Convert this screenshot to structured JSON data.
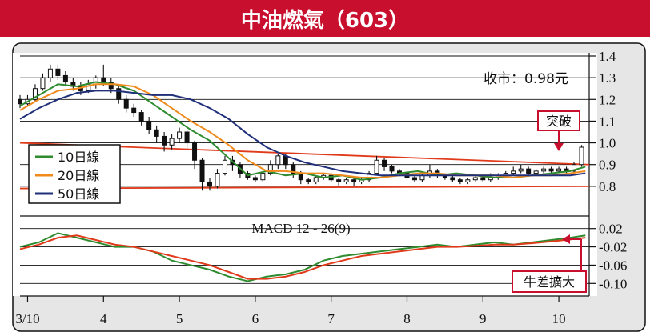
{
  "title": "中油燃氣（603）",
  "colors": {
    "title_bg": "#c8102e",
    "frame_bg": "#e6e6e6",
    "ma10": "#2e8b2e",
    "ma20": "#f08a1c",
    "ma50": "#1f2f7a",
    "macd_line": "#2e8b2e",
    "signal_line": "#e03a1a",
    "trendline": "#e03a1a",
    "annotation": "#c8102e",
    "candle": "#111111"
  },
  "price_note": "收市：0.98元",
  "breakout_label": "突破",
  "bull_diff_label": "牛差擴大",
  "legend": [
    {
      "label": "10日線",
      "color": "#2e8b2e"
    },
    {
      "label": "20日線",
      "color": "#f08a1c"
    },
    {
      "label": "50日線",
      "color": "#1f2f7a"
    }
  ],
  "macd_label": "MACD 12 - 26(9)",
  "x_labels": [
    "3/10",
    "4",
    "5",
    "6",
    "7",
    "8",
    "9",
    "10"
  ],
  "chart_data": [
    {
      "type": "line",
      "panel": "price",
      "title": "中油燃氣（603）",
      "x_domain": [
        0,
        150
      ],
      "ylim": [
        0.7,
        1.4
      ],
      "yticks": [
        "1.4",
        "1.3",
        "1.2",
        "1.1",
        "1.0",
        "0.9",
        "0.8"
      ],
      "close_price": 0.98,
      "series": [
        {
          "name": "10日線",
          "x": [
            0,
            5,
            10,
            15,
            20,
            25,
            30,
            35,
            40,
            45,
            50,
            55,
            60,
            65,
            70,
            75,
            80,
            85,
            90,
            95,
            100,
            105,
            110,
            115,
            120,
            125,
            130,
            135,
            140,
            145,
            149
          ],
          "values": [
            1.17,
            1.22,
            1.27,
            1.26,
            1.28,
            1.27,
            1.24,
            1.18,
            1.12,
            1.06,
            1.01,
            0.93,
            0.85,
            0.87,
            0.85,
            0.86,
            0.84,
            0.85,
            0.83,
            0.84,
            0.86,
            0.87,
            0.85,
            0.86,
            0.85,
            0.84,
            0.84,
            0.85,
            0.86,
            0.87,
            0.89
          ]
        },
        {
          "name": "20日線",
          "x": [
            0,
            5,
            10,
            15,
            20,
            25,
            30,
            35,
            40,
            45,
            50,
            55,
            60,
            65,
            70,
            75,
            80,
            85,
            90,
            95,
            100,
            105,
            110,
            115,
            120,
            125,
            130,
            135,
            140,
            145,
            149
          ],
          "values": [
            1.15,
            1.2,
            1.24,
            1.25,
            1.27,
            1.27,
            1.26,
            1.22,
            1.16,
            1.1,
            1.05,
            0.99,
            0.92,
            0.87,
            0.87,
            0.86,
            0.86,
            0.85,
            0.84,
            0.84,
            0.85,
            0.86,
            0.86,
            0.85,
            0.85,
            0.85,
            0.84,
            0.85,
            0.85,
            0.86,
            0.87
          ]
        },
        {
          "name": "50日線",
          "x": [
            0,
            5,
            10,
            15,
            20,
            25,
            30,
            35,
            40,
            45,
            50,
            55,
            60,
            65,
            70,
            75,
            80,
            85,
            90,
            95,
            100,
            105,
            110,
            115,
            120,
            125,
            130,
            135,
            140,
            145,
            149
          ],
          "values": [
            1.11,
            1.16,
            1.2,
            1.23,
            1.24,
            1.24,
            1.23,
            1.22,
            1.22,
            1.2,
            1.16,
            1.11,
            1.04,
            0.98,
            0.94,
            0.91,
            0.89,
            0.87,
            0.86,
            0.85,
            0.85,
            0.85,
            0.85,
            0.85,
            0.85,
            0.85,
            0.85,
            0.85,
            0.85,
            0.85,
            0.86
          ]
        }
      ],
      "candles": [
        [
          0,
          1.2,
          1.18,
          1.22,
          1.16
        ],
        [
          2,
          1.18,
          1.2,
          1.22,
          1.17
        ],
        [
          4,
          1.2,
          1.25,
          1.27,
          1.19
        ],
        [
          6,
          1.25,
          1.3,
          1.32,
          1.24
        ],
        [
          8,
          1.3,
          1.34,
          1.36,
          1.28
        ],
        [
          10,
          1.34,
          1.31,
          1.36,
          1.29
        ],
        [
          12,
          1.31,
          1.28,
          1.33,
          1.26
        ],
        [
          14,
          1.28,
          1.26,
          1.3,
          1.24
        ],
        [
          16,
          1.26,
          1.24,
          1.28,
          1.22
        ],
        [
          18,
          1.24,
          1.27,
          1.29,
          1.23
        ],
        [
          20,
          1.27,
          1.3,
          1.31,
          1.25
        ],
        [
          22,
          1.3,
          1.28,
          1.36,
          1.26
        ],
        [
          24,
          1.28,
          1.25,
          1.3,
          1.23
        ],
        [
          26,
          1.25,
          1.2,
          1.26,
          1.18
        ],
        [
          28,
          1.2,
          1.16,
          1.22,
          1.14
        ],
        [
          30,
          1.16,
          1.14,
          1.18,
          1.12
        ],
        [
          32,
          1.14,
          1.1,
          1.15,
          1.08
        ],
        [
          34,
          1.1,
          1.06,
          1.12,
          1.04
        ],
        [
          36,
          1.06,
          1.03,
          1.08,
          1.0
        ],
        [
          38,
          1.03,
          0.99,
          1.05,
          0.96
        ],
        [
          40,
          0.99,
          1.02,
          1.04,
          0.97
        ],
        [
          42,
          1.02,
          1.05,
          1.07,
          1.0
        ],
        [
          44,
          1.05,
          1.0,
          1.06,
          0.97
        ],
        [
          46,
          1.0,
          0.92,
          1.01,
          0.88
        ],
        [
          48,
          0.92,
          0.82,
          0.93,
          0.78
        ],
        [
          50,
          0.82,
          0.8,
          0.84,
          0.78
        ],
        [
          52,
          0.8,
          0.86,
          0.88,
          0.79
        ],
        [
          54,
          0.86,
          0.92,
          0.94,
          0.85
        ],
        [
          56,
          0.92,
          0.9,
          0.94,
          0.87
        ],
        [
          58,
          0.9,
          0.86,
          0.91,
          0.84
        ],
        [
          60,
          0.86,
          0.84,
          0.87,
          0.83
        ],
        [
          62,
          0.84,
          0.83,
          0.85,
          0.82
        ],
        [
          64,
          0.83,
          0.86,
          0.87,
          0.82
        ],
        [
          66,
          0.86,
          0.9,
          0.92,
          0.85
        ],
        [
          68,
          0.9,
          0.94,
          0.95,
          0.88
        ],
        [
          70,
          0.94,
          0.9,
          0.95,
          0.88
        ],
        [
          72,
          0.9,
          0.86,
          0.91,
          0.84
        ],
        [
          74,
          0.86,
          0.83,
          0.87,
          0.81
        ],
        [
          76,
          0.83,
          0.82,
          0.84,
          0.81
        ],
        [
          78,
          0.82,
          0.84,
          0.85,
          0.81
        ],
        [
          80,
          0.84,
          0.85,
          0.86,
          0.83
        ],
        [
          82,
          0.85,
          0.83,
          0.86,
          0.82
        ],
        [
          84,
          0.83,
          0.82,
          0.84,
          0.8
        ],
        [
          86,
          0.82,
          0.83,
          0.84,
          0.81
        ],
        [
          88,
          0.83,
          0.82,
          0.84,
          0.8
        ],
        [
          90,
          0.82,
          0.83,
          0.84,
          0.81
        ],
        [
          92,
          0.83,
          0.86,
          0.87,
          0.82
        ],
        [
          94,
          0.86,
          0.92,
          0.94,
          0.85
        ],
        [
          96,
          0.92,
          0.89,
          0.93,
          0.87
        ],
        [
          98,
          0.89,
          0.87,
          0.9,
          0.86
        ],
        [
          100,
          0.87,
          0.86,
          0.88,
          0.85
        ],
        [
          102,
          0.86,
          0.84,
          0.87,
          0.83
        ],
        [
          104,
          0.84,
          0.83,
          0.85,
          0.82
        ],
        [
          106,
          0.83,
          0.85,
          0.86,
          0.82
        ],
        [
          108,
          0.85,
          0.87,
          0.9,
          0.84
        ],
        [
          110,
          0.87,
          0.85,
          0.88,
          0.84
        ],
        [
          112,
          0.85,
          0.84,
          0.86,
          0.83
        ],
        [
          114,
          0.84,
          0.83,
          0.85,
          0.82
        ],
        [
          116,
          0.83,
          0.82,
          0.84,
          0.81
        ],
        [
          118,
          0.82,
          0.83,
          0.84,
          0.81
        ],
        [
          120,
          0.83,
          0.84,
          0.85,
          0.82
        ],
        [
          122,
          0.84,
          0.83,
          0.85,
          0.82
        ],
        [
          124,
          0.83,
          0.84,
          0.86,
          0.82
        ],
        [
          126,
          0.84,
          0.85,
          0.86,
          0.83
        ],
        [
          128,
          0.85,
          0.86,
          0.87,
          0.84
        ],
        [
          130,
          0.86,
          0.87,
          0.89,
          0.85
        ],
        [
          132,
          0.87,
          0.88,
          0.9,
          0.86
        ],
        [
          134,
          0.88,
          0.86,
          0.89,
          0.85
        ],
        [
          136,
          0.86,
          0.87,
          0.88,
          0.85
        ],
        [
          138,
          0.87,
          0.88,
          0.89,
          0.86
        ],
        [
          140,
          0.88,
          0.87,
          0.89,
          0.86
        ],
        [
          142,
          0.87,
          0.88,
          0.89,
          0.86
        ],
        [
          144,
          0.88,
          0.87,
          0.89,
          0.86
        ],
        [
          146,
          0.87,
          0.9,
          0.91,
          0.86
        ],
        [
          148,
          0.9,
          0.98,
          0.99,
          0.89
        ]
      ],
      "trendlines": [
        [
          [
            0,
            1.0
          ],
          [
            150,
            0.9
          ]
        ],
        [
          [
            0,
            0.79
          ],
          [
            150,
            0.8
          ]
        ]
      ],
      "legend_position": "left"
    },
    {
      "type": "line",
      "panel": "macd",
      "title": "MACD 12 - 26(9)",
      "x_domain": [
        0,
        150
      ],
      "ylim": [
        -0.11,
        0.03
      ],
      "yticks": [
        "0.02",
        "-0.02",
        "-0.06",
        "-0.10"
      ],
      "series": [
        {
          "x": [
            0,
            5,
            10,
            15,
            20,
            25,
            30,
            35,
            40,
            45,
            50,
            55,
            60,
            65,
            70,
            75,
            80,
            85,
            90,
            95,
            100,
            105,
            110,
            115,
            120,
            125,
            130,
            135,
            140,
            145,
            149
          ],
          "values": [
            -0.02,
            -0.01,
            0.01,
            0.0,
            -0.01,
            -0.02,
            -0.02,
            -0.03,
            -0.05,
            -0.06,
            -0.07,
            -0.085,
            -0.095,
            -0.085,
            -0.08,
            -0.07,
            -0.05,
            -0.04,
            -0.035,
            -0.03,
            -0.025,
            -0.02,
            -0.015,
            -0.02,
            -0.015,
            -0.01,
            -0.015,
            -0.01,
            -0.005,
            0.0,
            0.005
          ]
        },
        {
          "x": [
            0,
            5,
            10,
            15,
            20,
            25,
            30,
            35,
            40,
            45,
            50,
            55,
            60,
            65,
            70,
            75,
            80,
            85,
            90,
            95,
            100,
            105,
            110,
            115,
            120,
            125,
            130,
            135,
            140,
            145,
            149
          ],
          "values": [
            -0.025,
            -0.015,
            0.0,
            0.005,
            -0.005,
            -0.015,
            -0.02,
            -0.03,
            -0.04,
            -0.05,
            -0.06,
            -0.075,
            -0.09,
            -0.09,
            -0.085,
            -0.075,
            -0.06,
            -0.05,
            -0.04,
            -0.035,
            -0.03,
            -0.025,
            -0.02,
            -0.02,
            -0.018,
            -0.015,
            -0.015,
            -0.012,
            -0.008,
            -0.004,
            0.0
          ]
        }
      ]
    }
  ]
}
